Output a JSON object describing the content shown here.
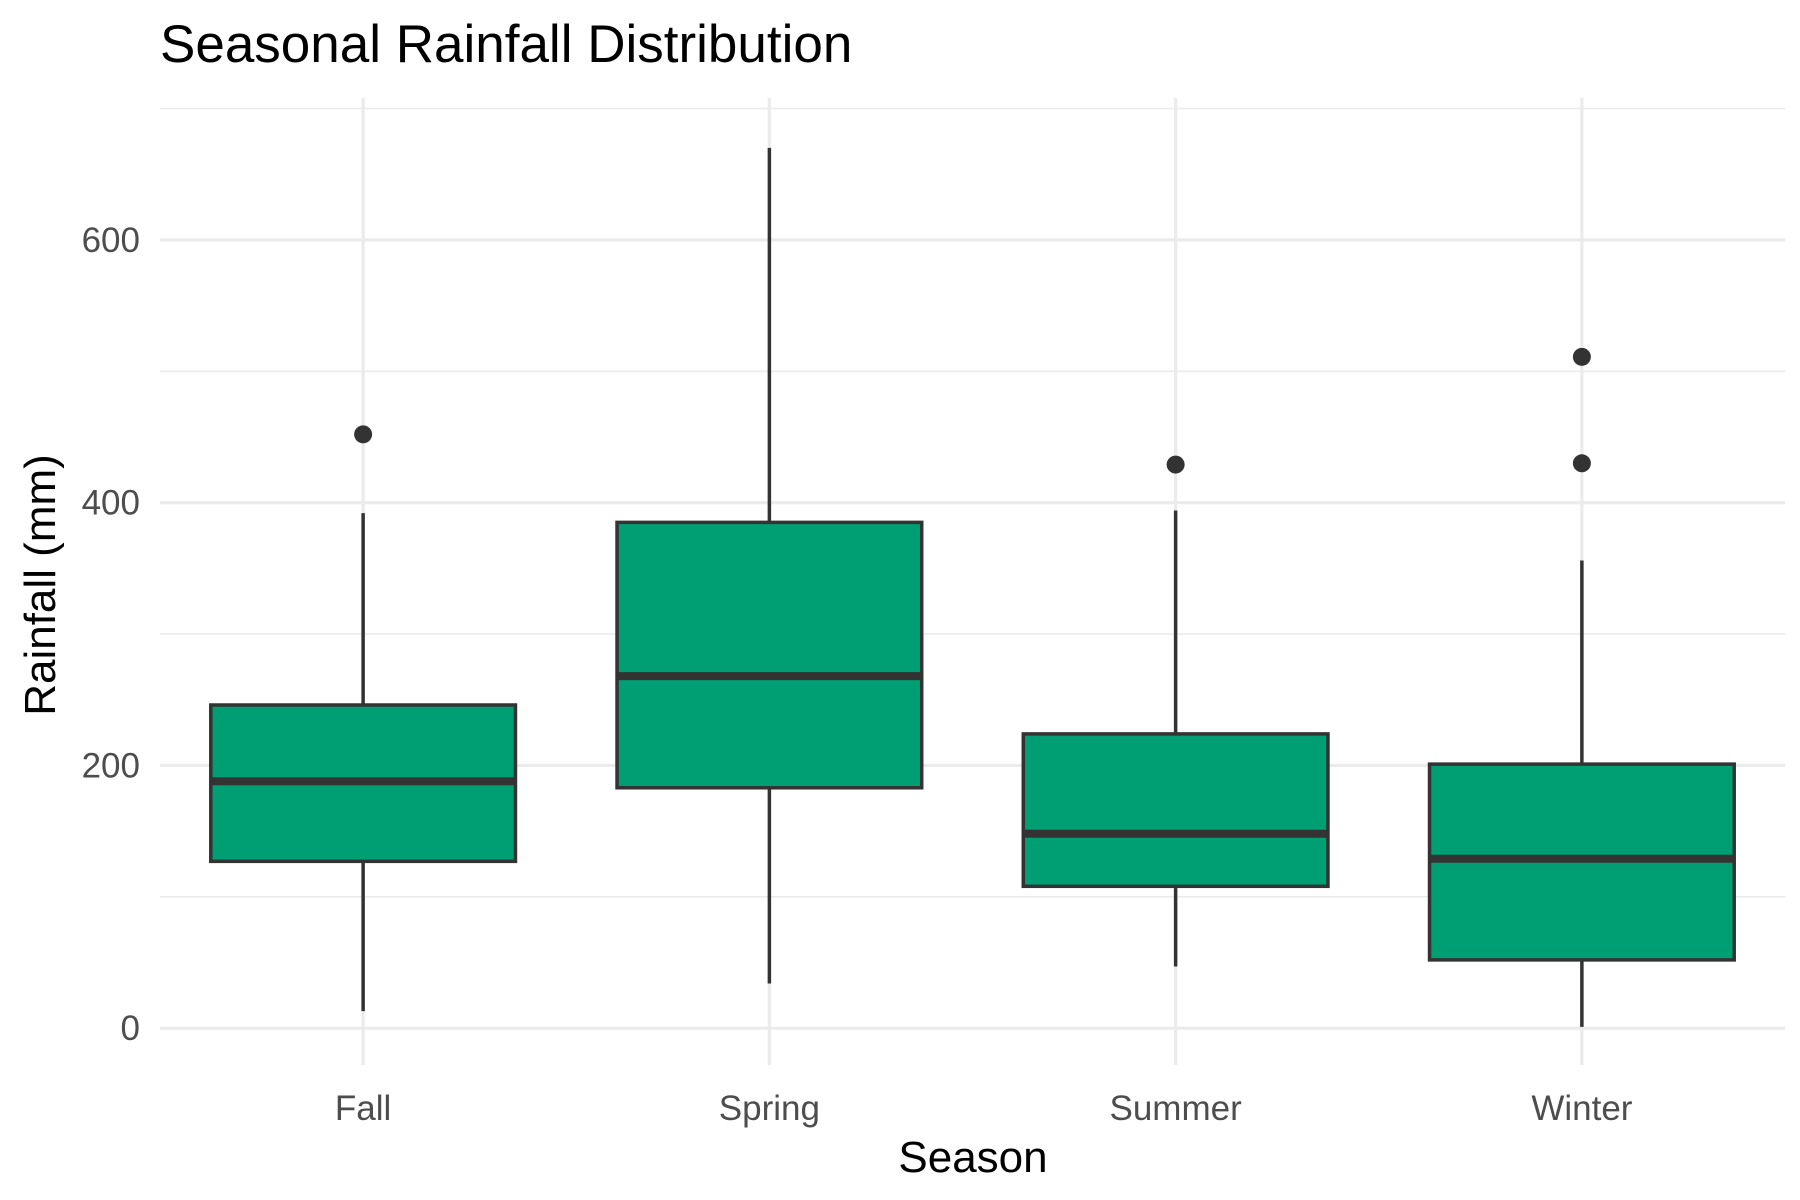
{
  "chart_data": {
    "type": "box",
    "title": "Seasonal Rainfall Distribution",
    "xlabel": "Season",
    "ylabel": "Rainfall (mm)",
    "ylim": [
      -28,
      708
    ],
    "yticks": [
      0,
      200,
      400,
      600
    ],
    "ytick_labels": [
      "0",
      "200",
      "400",
      "600"
    ],
    "grid": true,
    "legend": "none",
    "fill_color": "#009E73",
    "line_color": "#333333",
    "categories": [
      "Fall",
      "Spring",
      "Summer",
      "Winter"
    ],
    "boxes": [
      {
        "category": "Fall",
        "whisker_low": 13,
        "q1": 127,
        "median": 188,
        "q3": 246,
        "whisker_high": 392,
        "outliers": [
          452
        ]
      },
      {
        "category": "Spring",
        "whisker_low": 34,
        "q1": 183,
        "median": 268,
        "q3": 385,
        "whisker_high": 670,
        "outliers": []
      },
      {
        "category": "Summer",
        "whisker_low": 47,
        "q1": 108,
        "median": 148,
        "q3": 224,
        "whisker_high": 394,
        "outliers": [
          429
        ]
      },
      {
        "category": "Winter",
        "whisker_low": 1,
        "q1": 52,
        "median": 129,
        "q3": 201,
        "whisker_high": 356,
        "outliers": [
          430,
          511
        ]
      }
    ]
  }
}
